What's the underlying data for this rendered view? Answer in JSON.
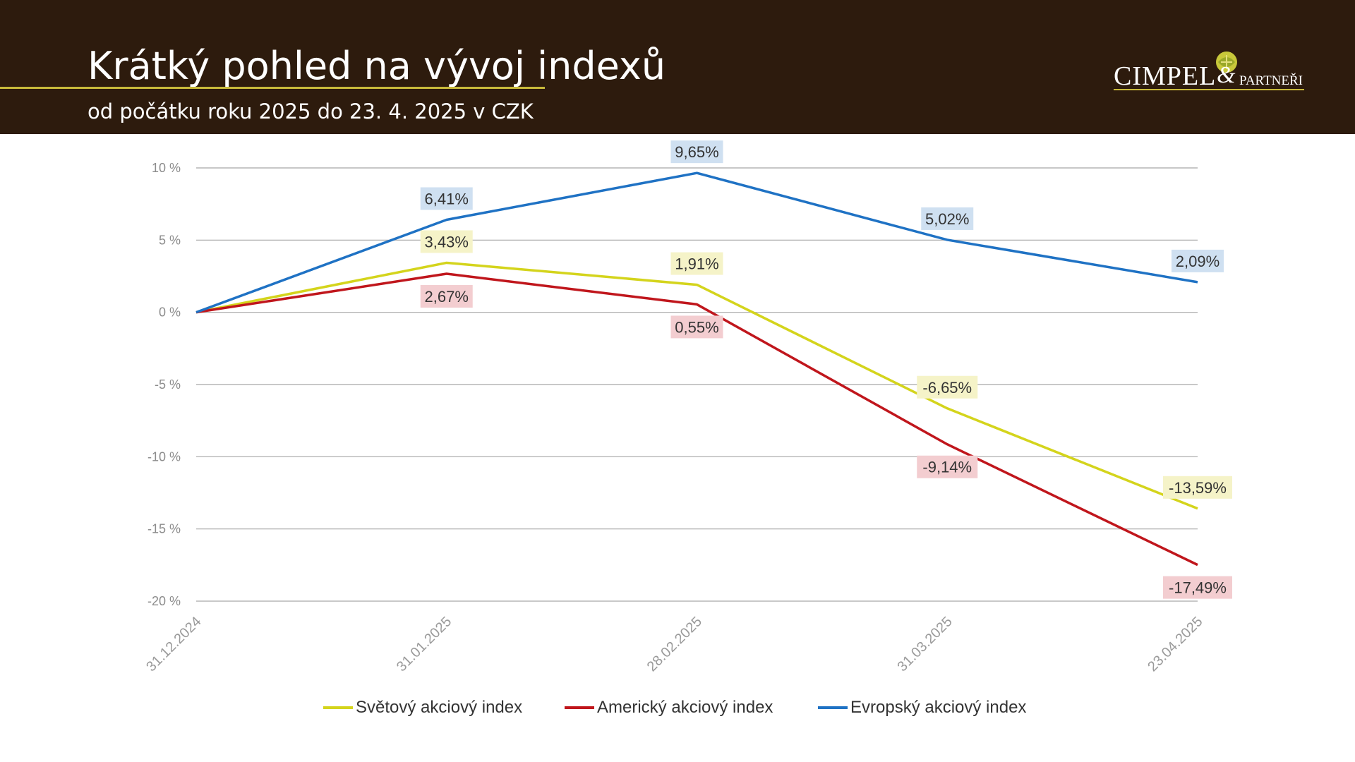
{
  "header": {
    "title": "Krátký pohled na vývoj indexů",
    "subtitle": "od počátku roku 2025 do 23. 4. 2025 v CZK",
    "logo_main": "CIMPEL",
    "logo_amp": "&",
    "logo_sub": "PARTNEŘI",
    "background_color": "#2d1b0d",
    "accent_color": "#c8b93a"
  },
  "chart_data": {
    "type": "line",
    "categories": [
      "31.12.2024",
      "31.01.2025",
      "28.02.2025",
      "31.03.2025",
      "23.04.2025"
    ],
    "y_ticks": [
      10,
      5,
      0,
      -5,
      -10,
      -15,
      -20
    ],
    "y_tick_labels": [
      "10 %",
      "5 %",
      "0 %",
      "-5 %",
      "-10 %",
      "-15 %",
      "-20 %"
    ],
    "ylim": [
      -20,
      10
    ],
    "grid": true,
    "legend_position": "bottom",
    "series": [
      {
        "name": "Světový akciový index",
        "color": "#d4d41c",
        "label_bg": "#f5f3c8",
        "values": [
          0,
          3.43,
          1.91,
          -6.65,
          -13.59
        ],
        "labels": [
          "",
          "3,43%",
          "1,91%",
          "-6,65%",
          "-13,59%"
        ],
        "label_side": [
          "",
          "above",
          "above",
          "above",
          "above"
        ]
      },
      {
        "name": "Americký akciový index",
        "color": "#c0161c",
        "label_bg": "#f3cdd0",
        "values": [
          0,
          2.67,
          0.55,
          -9.14,
          -17.49
        ],
        "labels": [
          "",
          "2,67%",
          "0,55%",
          "-9,14%",
          "-17,49%"
        ],
        "label_side": [
          "",
          "below",
          "below",
          "below",
          "below"
        ]
      },
      {
        "name": "Evropský akciový index",
        "color": "#1f72c4",
        "label_bg": "#cfe0f1",
        "values": [
          0,
          6.41,
          9.65,
          5.02,
          2.09
        ],
        "labels": [
          "",
          "6,41%",
          "9,65%",
          "5,02%",
          "2,09%"
        ],
        "label_side": [
          "",
          "above",
          "above",
          "above",
          "above"
        ]
      }
    ]
  }
}
